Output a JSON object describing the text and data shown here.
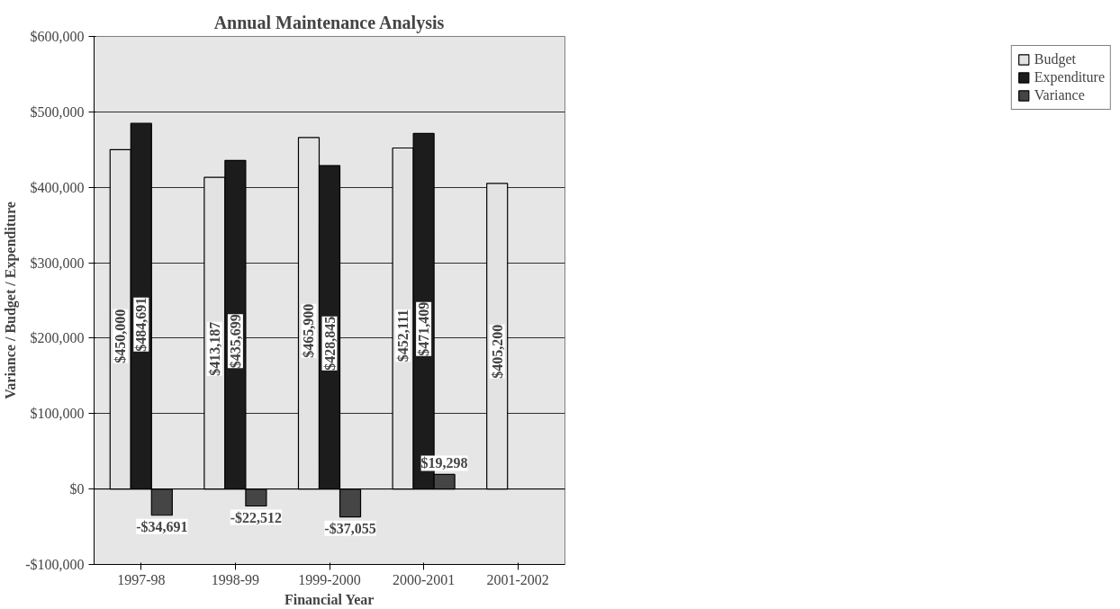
{
  "chart_data": {
    "type": "bar",
    "title": "Annual Maintenance Analysis",
    "xlabel": "Financial Year",
    "ylabel": "Variance / Budget / Expenditure",
    "categories": [
      "1997-98",
      "1998-99",
      "1999-2000",
      "2000-2001",
      "2001-2002"
    ],
    "series": [
      {
        "name": "Budget",
        "color": "#e3e3e3",
        "values": [
          450000,
          413187,
          465900,
          452111,
          405200
        ],
        "value_labels": [
          "$450,000",
          "$413,187",
          "$465,900",
          "$452,111",
          "$405,200"
        ]
      },
      {
        "name": "Expenditure",
        "color": "#1c1c1c",
        "values": [
          484691,
          435699,
          428845,
          471409,
          null
        ],
        "value_labels": [
          "$484,691",
          "$435,699",
          "$428,845",
          "$471,409",
          null
        ]
      },
      {
        "name": "Variance",
        "color": "#454545",
        "values": [
          -34691,
          -22512,
          -37055,
          19298,
          null
        ],
        "value_labels": [
          "-$34,691",
          "-$22,512",
          "-$37,055",
          "$19,298",
          null
        ]
      }
    ],
    "ylim": [
      -100000,
      600000
    ],
    "yticks": [
      {
        "value": -100000,
        "label": "-$100,000"
      },
      {
        "value": 0,
        "label": "$0"
      },
      {
        "value": 100000,
        "label": "$100,000"
      },
      {
        "value": 200000,
        "label": "$200,000"
      },
      {
        "value": 300000,
        "label": "$300,000"
      },
      {
        "value": 400000,
        "label": "$400,000"
      },
      {
        "value": 500000,
        "label": "$500,000"
      },
      {
        "value": 600000,
        "label": "$600,000"
      }
    ],
    "grid": "y",
    "legend": "right"
  }
}
